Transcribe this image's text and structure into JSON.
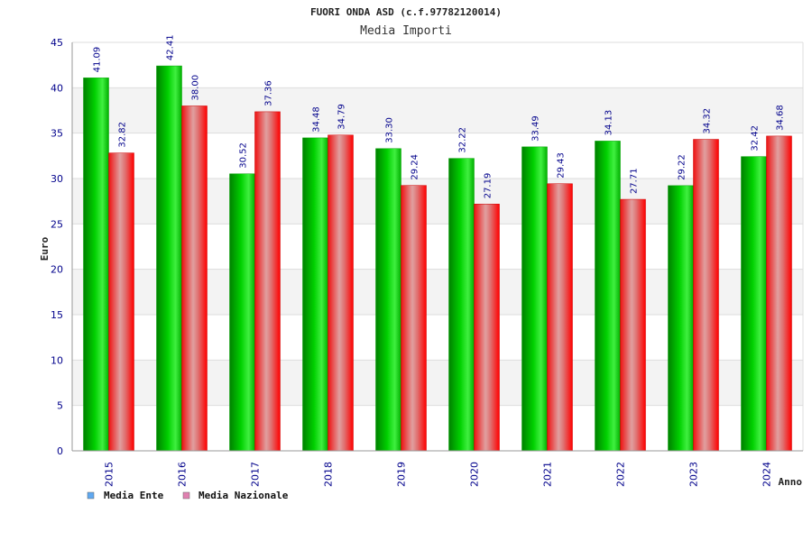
{
  "chart_data": {
    "type": "bar",
    "title": "FUORI ONDA ASD (c.f.97782120014)",
    "subtitle": "Media Importi",
    "xlabel": "Anno",
    "ylabel": "Euro",
    "ylim": [
      0,
      45
    ],
    "yticks": [
      0,
      5,
      10,
      15,
      20,
      25,
      30,
      35,
      40,
      45
    ],
    "grid": true,
    "legend_position": "bottom-left",
    "categories": [
      "2015",
      "2016",
      "2017",
      "2018",
      "2019",
      "2020",
      "2021",
      "2022",
      "2023",
      "2024"
    ],
    "series": [
      {
        "name": "Media Ente",
        "values": [
          41.09,
          42.41,
          30.52,
          34.48,
          33.3,
          32.22,
          33.49,
          34.13,
          29.22,
          32.42
        ],
        "labels": [
          "41.09",
          "42.41",
          "30.52",
          "34.48",
          "33.30",
          "32.22",
          "33.49",
          "34.13",
          "29.22",
          "32.42"
        ],
        "color": "#00c000",
        "legend_color": "#5fa8f0"
      },
      {
        "name": "Media Nazionale",
        "values": [
          32.82,
          38.0,
          37.36,
          34.79,
          29.24,
          27.19,
          29.43,
          27.71,
          34.32,
          34.68
        ],
        "labels": [
          "32.82",
          "38.00",
          "37.36",
          "34.79",
          "29.24",
          "27.19",
          "29.43",
          "27.71",
          "34.32",
          "34.68"
        ],
        "color": "#ee1111",
        "legend_color": "#e080b0"
      }
    ]
  }
}
